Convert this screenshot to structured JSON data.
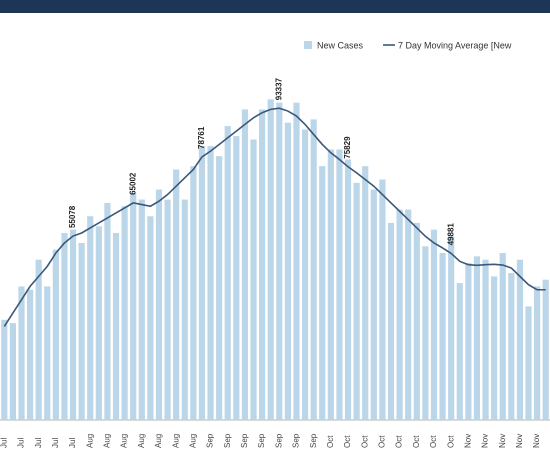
{
  "chart_data": {
    "type": "bar",
    "categories": [
      "Jul",
      null,
      "Jul",
      null,
      "Jul",
      null,
      "Jul",
      null,
      "Jul",
      null,
      "Aug",
      null,
      "Aug",
      null,
      "Aug",
      null,
      "Aug",
      null,
      "Aug",
      null,
      "Aug",
      null,
      "Aug",
      null,
      "Sep",
      null,
      "Sep",
      null,
      "Sep",
      null,
      "Sep",
      null,
      "Sep",
      null,
      "Sep",
      null,
      "Sep",
      null,
      "Oct",
      null,
      "Oct",
      null,
      "Oct",
      null,
      "Oct",
      null,
      "Oct",
      null,
      "Oct",
      null,
      "Oct",
      null,
      "Oct",
      null,
      "Nov",
      null,
      "Nov",
      null,
      "Nov",
      null,
      "Nov",
      null,
      "Nov",
      null
    ],
    "series": [
      {
        "name": "New Cases",
        "color": "#bcd6e9",
        "type": "bar",
        "values": [
          30000,
          29000,
          40000,
          39000,
          48000,
          40000,
          51000,
          56000,
          57000,
          53000,
          61000,
          58000,
          65000,
          56000,
          64000,
          68000,
          66000,
          61000,
          69000,
          66000,
          75000,
          66000,
          76000,
          82000,
          82000,
          79000,
          88000,
          85000,
          93000,
          84000,
          93000,
          96000,
          95000,
          89000,
          95000,
          87000,
          90000,
          76000,
          81000,
          81000,
          78000,
          71000,
          76000,
          69000,
          72000,
          59000,
          63000,
          63000,
          59000,
          52000,
          57000,
          50000,
          55000,
          41000,
          47000,
          49000,
          48000,
          43000,
          50000,
          44000,
          48000,
          34000,
          40000,
          42000
        ]
      },
      {
        "name": "7 Day Moving Average [New",
        "color": "#3b5878",
        "type": "line",
        "values": [
          28000,
          32000,
          36000,
          40000,
          43000,
          46000,
          50000,
          53000,
          55078,
          56000,
          57500,
          59000,
          60500,
          62000,
          63500,
          65002,
          64500,
          64000,
          65500,
          67500,
          70000,
          72500,
          75000,
          78761,
          80500,
          82500,
          84500,
          86500,
          88500,
          90500,
          92000,
          93000,
          93337,
          92500,
          91000,
          88500,
          85500,
          82500,
          80000,
          78000,
          75829,
          74000,
          72000,
          70000,
          67500,
          65000,
          62500,
          60000,
          57500,
          55000,
          53000,
          51500,
          49881,
          47500,
          46500,
          46300,
          46500,
          46600,
          46400,
          45500,
          43000,
          40500,
          39000,
          39000
        ],
        "value_labels": [
          null,
          null,
          null,
          null,
          null,
          null,
          null,
          null,
          "55078",
          null,
          null,
          null,
          null,
          null,
          null,
          "65002",
          null,
          null,
          null,
          null,
          null,
          null,
          null,
          "78761",
          null,
          null,
          null,
          null,
          null,
          null,
          null,
          null,
          "93337",
          null,
          null,
          null,
          null,
          null,
          null,
          null,
          "75829",
          null,
          null,
          null,
          null,
          null,
          null,
          null,
          null,
          null,
          null,
          null,
          "49881",
          null,
          null,
          null,
          null,
          null,
          null,
          null,
          null,
          null,
          null,
          null
        ]
      }
    ],
    "ylim": [
      0,
      100000
    ]
  }
}
